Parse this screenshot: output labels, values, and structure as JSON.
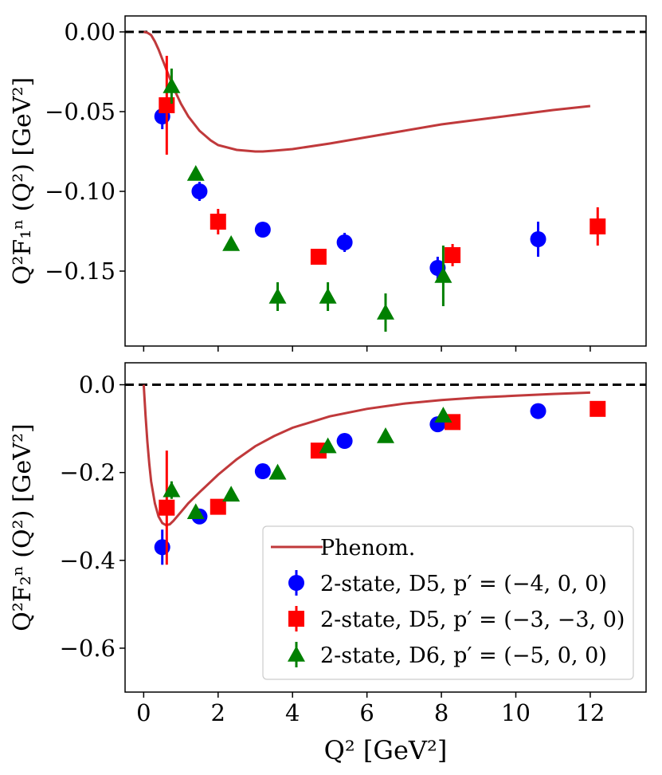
{
  "chart_data": [
    {
      "type": "scatter",
      "ylabel": "Q²F₁ⁿ (Q²) [GeV²]",
      "xlabel": "",
      "xlim": [
        -0.5,
        13.5
      ],
      "ylim": [
        -0.197,
        0.01
      ],
      "yticks": [
        0.0,
        -0.05,
        -0.1,
        -0.15
      ],
      "ytick_labels": [
        "0.00",
        "−0.05",
        "−0.10",
        "−0.15"
      ],
      "zero_line": true,
      "phenom": {
        "name": "Phenom.",
        "x": [
          0,
          0.1,
          0.2,
          0.3,
          0.4,
          0.5,
          0.6,
          0.7,
          0.8,
          1.0,
          1.2,
          1.5,
          1.8,
          2.0,
          2.5,
          3.0,
          3.2,
          3.5,
          4.0,
          5.0,
          6.0,
          7.0,
          8.0,
          9.0,
          10.0,
          11.0,
          12.0
        ],
        "y": [
          0.0,
          -0.0005,
          -0.002,
          -0.006,
          -0.011,
          -0.017,
          -0.023,
          -0.029,
          -0.035,
          -0.045,
          -0.053,
          -0.062,
          -0.068,
          -0.071,
          -0.074,
          -0.075,
          -0.075,
          -0.0745,
          -0.0735,
          -0.07,
          -0.066,
          -0.062,
          -0.058,
          -0.055,
          -0.052,
          -0.049,
          -0.0465
        ]
      },
      "series": [
        {
          "name": "2-state, D5, p′ = (−4, 0, 0)",
          "marker": "circle",
          "color": "#0000ff",
          "x": [
            0.5,
            1.5,
            3.2,
            5.4,
            7.9,
            10.6
          ],
          "y": [
            -0.053,
            -0.1,
            -0.124,
            -0.132,
            -0.148,
            -0.13
          ],
          "err": [
            0.008,
            0.006,
            0.004,
            0.006,
            0.007,
            0.011
          ]
        },
        {
          "name": "2-state, D5, p′ = (−3, −3, 0)",
          "marker": "square",
          "color": "#ff0000",
          "x": [
            0.62,
            2.0,
            4.7,
            8.3,
            12.2
          ],
          "y": [
            -0.046,
            -0.119,
            -0.141,
            -0.14,
            -0.122
          ],
          "err": [
            0.031,
            0.008,
            0.005,
            0.007,
            0.012
          ]
        },
        {
          "name": "2-state, D6, p′ = (−5, 0, 0)",
          "marker": "triangle",
          "color": "#008000",
          "x": [
            0.75,
            1.4,
            2.35,
            3.6,
            4.95,
            6.5,
            8.05
          ],
          "y": [
            -0.034,
            -0.089,
            -0.133,
            -0.166,
            -0.166,
            -0.176,
            -0.153
          ],
          "err": [
            0.011,
            0.003,
            0.004,
            0.009,
            0.009,
            0.012,
            0.019
          ]
        }
      ]
    },
    {
      "type": "scatter",
      "ylabel": "Q²F₂ⁿ (Q²) [GeV²]",
      "xlabel": "Q² [GeV²]",
      "xlim": [
        -0.5,
        13.5
      ],
      "ylim": [
        -0.7,
        0.05
      ],
      "yticks": [
        0.0,
        -0.2,
        -0.4,
        -0.6
      ],
      "ytick_labels": [
        "0.0",
        "−0.2",
        "−0.4",
        "−0.6"
      ],
      "xticks": [
        0,
        2,
        4,
        6,
        8,
        10,
        12
      ],
      "xtick_labels": [
        "0",
        "2",
        "4",
        "6",
        "8",
        "10",
        "12"
      ],
      "zero_line": true,
      "phenom": {
        "name": "Phenom.",
        "x": [
          0,
          0.05,
          0.1,
          0.15,
          0.2,
          0.3,
          0.4,
          0.5,
          0.6,
          0.7,
          0.8,
          1.0,
          1.2,
          1.5,
          2.0,
          2.5,
          3.0,
          3.5,
          4.0,
          5.0,
          6.0,
          7.0,
          8.0,
          9.0,
          10.0,
          11.0,
          12.0
        ],
        "y": [
          0.0,
          -0.07,
          -0.13,
          -0.18,
          -0.22,
          -0.27,
          -0.3,
          -0.315,
          -0.32,
          -0.318,
          -0.31,
          -0.29,
          -0.27,
          -0.245,
          -0.205,
          -0.17,
          -0.14,
          -0.117,
          -0.098,
          -0.072,
          -0.055,
          -0.043,
          -0.035,
          -0.029,
          -0.025,
          -0.021,
          -0.018
        ]
      },
      "series": [
        {
          "name": "2-state, D5, p′ = (−4, 0, 0)",
          "marker": "circle",
          "color": "#0000ff",
          "x": [
            0.5,
            1.5,
            3.2,
            5.4,
            7.9,
            10.6
          ],
          "y": [
            -0.37,
            -0.3,
            -0.197,
            -0.128,
            -0.09,
            -0.06
          ],
          "err": [
            0.04,
            0.01,
            0.008,
            0.006,
            0.006,
            0.006
          ]
        },
        {
          "name": "2-state, D5, p′ = (−3, −3, 0)",
          "marker": "square",
          "color": "#ff0000",
          "x": [
            0.62,
            2.0,
            4.7,
            8.3,
            12.2
          ],
          "y": [
            -0.28,
            -0.278,
            -0.15,
            -0.085,
            -0.055
          ],
          "err": [
            0.13,
            0.01,
            0.01,
            0.008,
            0.006
          ]
        },
        {
          "name": "2-state, D6, p′ = (−5, 0, 0)",
          "marker": "triangle",
          "color": "#008000",
          "x": [
            0.75,
            1.4,
            2.35,
            3.6,
            4.95,
            6.5,
            8.05
          ],
          "y": [
            -0.24,
            -0.29,
            -0.25,
            -0.2,
            -0.14,
            -0.117,
            -0.07
          ],
          "err": [
            0.02,
            0.01,
            0.01,
            0.008,
            0.008,
            0.006,
            0.006
          ]
        }
      ]
    }
  ],
  "legend": {
    "placement": "lower-right",
    "entries": [
      {
        "label": "Phenom.",
        "kind": "line",
        "color": "#c0393b"
      },
      {
        "label": "2-state, D5, p′ = (−4, 0, 0)",
        "kind": "circle",
        "color": "#0000ff"
      },
      {
        "label": "2-state, D5, p′ = (−3, −3, 0)",
        "kind": "square",
        "color": "#ff0000"
      },
      {
        "label": "2-state, D6, p′ = (−5, 0, 0)",
        "kind": "triangle",
        "color": "#008000"
      }
    ]
  },
  "colors": {
    "phenom": "#c0393b",
    "zero_line": "#000000"
  }
}
